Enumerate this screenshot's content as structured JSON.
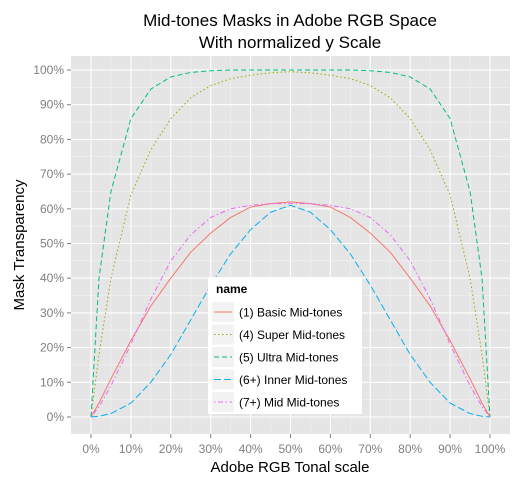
{
  "chart_data": {
    "type": "line",
    "title": "Mid-tones Masks in Adobe RGB Space",
    "subtitle": "With normalized y Scale",
    "xlabel": "Adobe RGB Tonal scale",
    "ylabel": "Mask Transparency",
    "xlim": [
      0,
      100
    ],
    "ylim": [
      0,
      100
    ],
    "x_ticks": [
      "0%",
      "10%",
      "20%",
      "30%",
      "40%",
      "50%",
      "60%",
      "70%",
      "80%",
      "90%",
      "100%"
    ],
    "y_ticks": [
      "0%",
      "10%",
      "20%",
      "30%",
      "40%",
      "50%",
      "60%",
      "70%",
      "80%",
      "90%",
      "100%"
    ],
    "grid": true,
    "legend": {
      "title": "name",
      "position": "bottom-center"
    },
    "x": [
      0,
      2,
      5,
      10,
      15,
      20,
      25,
      30,
      35,
      40,
      45,
      50,
      55,
      60,
      65,
      70,
      75,
      80,
      85,
      90,
      95,
      98,
      100
    ],
    "series": [
      {
        "name": "(1) Basic Mid-tones",
        "color": "#F8766D",
        "dash": "solid",
        "values": [
          0,
          4,
          11,
          22,
          32,
          40,
          47.5,
          53,
          57.5,
          60.5,
          61.5,
          62,
          61.5,
          60.5,
          57.5,
          53,
          47.5,
          40,
          32,
          22,
          11,
          4,
          0
        ]
      },
      {
        "name": "(4) Super Mid-tones",
        "color": "#A3A500",
        "dash": "dotted",
        "values": [
          0,
          18,
          40,
          64,
          77,
          86,
          92,
          95.5,
          97.5,
          98.5,
          99.2,
          99.5,
          99.2,
          98.5,
          97.5,
          95.5,
          92,
          86,
          77,
          64,
          40,
          18,
          0
        ]
      },
      {
        "name": "(5) Ultra Mid-tones",
        "color": "#00BF7D",
        "dash": "dashed",
        "values": [
          0,
          40,
          65,
          86,
          94.5,
          98,
          99.3,
          99.8,
          100,
          100,
          100,
          100,
          100,
          100,
          100,
          99.8,
          99.3,
          98,
          94.5,
          86,
          65,
          40,
          0
        ]
      },
      {
        "name": "(6+) Inner Mid-tones",
        "color": "#00B0F6",
        "dash": "longdash",
        "values": [
          0,
          0.2,
          1,
          4,
          10,
          18,
          28,
          38,
          47,
          54,
          59,
          61,
          59,
          54,
          47,
          38,
          28,
          18,
          10,
          4,
          1,
          0.2,
          0
        ]
      },
      {
        "name": "(7+) Mid Mid-tones",
        "color": "#E76BF3",
        "dash": "dotdash",
        "values": [
          0,
          3,
          9,
          21,
          34,
          45,
          52.5,
          57.5,
          60,
          61,
          61.5,
          61.5,
          61.5,
          61,
          60,
          57.5,
          52.5,
          45,
          34,
          21,
          9,
          3,
          0
        ]
      }
    ]
  }
}
